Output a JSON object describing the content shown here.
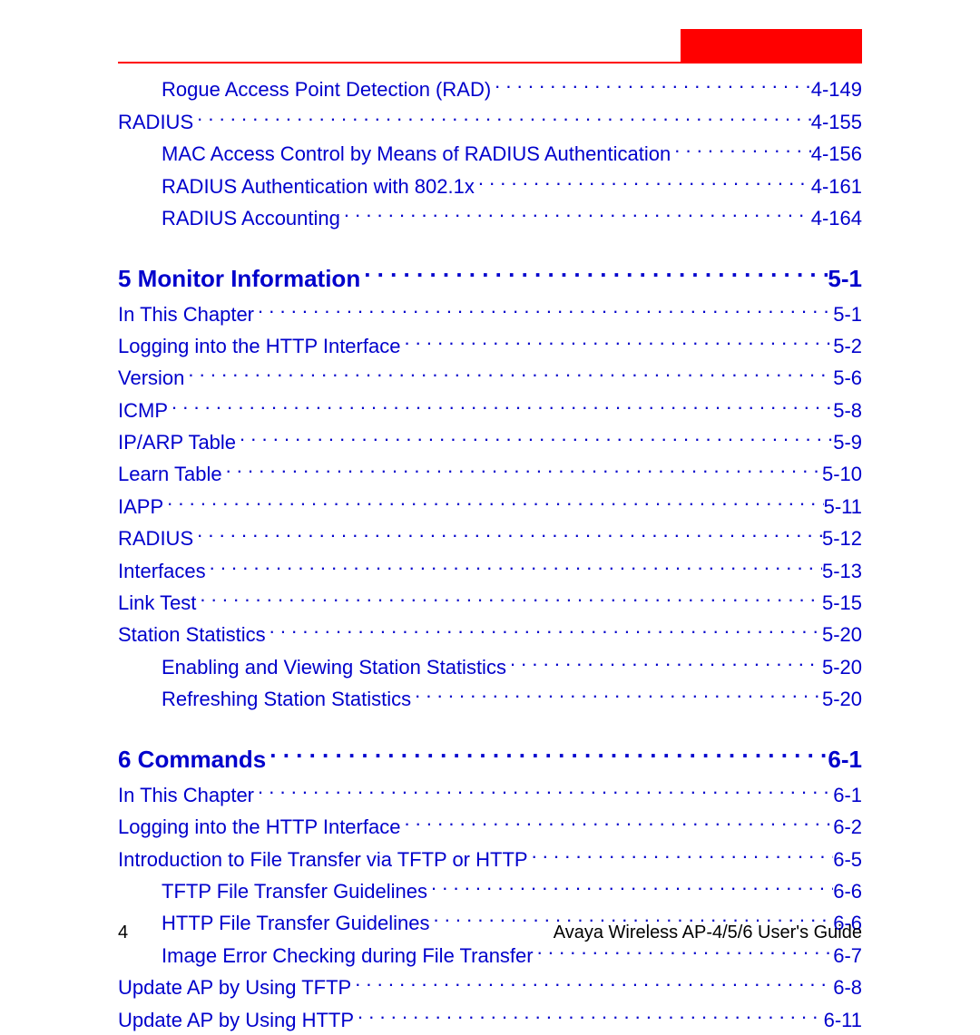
{
  "colors": {
    "link": "#0000cc",
    "accent": "#ff0000",
    "text": "#000000",
    "background": "#ffffff"
  },
  "typography": {
    "body_fontsize_pt": 16,
    "heading_fontsize_pt": 19,
    "font_family": "Arial"
  },
  "entries": [
    {
      "indent": 2,
      "title": "Rogue Access Point Detection (RAD)",
      "page": "4-149",
      "heading": false
    },
    {
      "indent": 1,
      "title": "RADIUS",
      "page": "4-155",
      "heading": false
    },
    {
      "indent": 2,
      "title": "MAC Access Control by Means of RADIUS Authentication",
      "page": "4-156",
      "heading": false
    },
    {
      "indent": 2,
      "title": "RADIUS Authentication with 802.1x",
      "page": "4-161",
      "heading": false
    },
    {
      "indent": 2,
      "title": "RADIUS Accounting",
      "page": "4-164",
      "heading": false
    },
    {
      "indent": 1,
      "title": "5 Monitor Information",
      "page": "5-1",
      "heading": true
    },
    {
      "indent": 1,
      "title": "In This Chapter",
      "page": "5-1",
      "heading": false
    },
    {
      "indent": 1,
      "title": "Logging into the HTTP Interface",
      "page": "5-2",
      "heading": false
    },
    {
      "indent": 1,
      "title": "Version",
      "page": "5-6",
      "heading": false
    },
    {
      "indent": 1,
      "title": "ICMP",
      "page": "5-8",
      "heading": false
    },
    {
      "indent": 1,
      "title": "IP/ARP Table",
      "page": "5-9",
      "heading": false
    },
    {
      "indent": 1,
      "title": "Learn Table",
      "page": "5-10",
      "heading": false
    },
    {
      "indent": 1,
      "title": "IAPP",
      "page": "5-11",
      "heading": false
    },
    {
      "indent": 1,
      "title": "RADIUS",
      "page": "5-12",
      "heading": false
    },
    {
      "indent": 1,
      "title": "Interfaces",
      "page": "5-13",
      "heading": false
    },
    {
      "indent": 1,
      "title": "Link Test",
      "page": "5-15",
      "heading": false
    },
    {
      "indent": 1,
      "title": "Station Statistics",
      "page": "5-20",
      "heading": false
    },
    {
      "indent": 2,
      "title": "Enabling and Viewing Station Statistics",
      "page": "5-20",
      "heading": false
    },
    {
      "indent": 2,
      "title": "Refreshing Station Statistics",
      "page": "5-20",
      "heading": false
    },
    {
      "indent": 1,
      "title": "6 Commands",
      "page": "6-1",
      "heading": true
    },
    {
      "indent": 1,
      "title": "In This Chapter",
      "page": "6-1",
      "heading": false
    },
    {
      "indent": 1,
      "title": "Logging into the HTTP Interface",
      "page": "6-2",
      "heading": false
    },
    {
      "indent": 1,
      "title": "Introduction to File Transfer via TFTP or HTTP",
      "page": "6-5",
      "heading": false
    },
    {
      "indent": 2,
      "title": "TFTP File Transfer Guidelines",
      "page": "6-6",
      "heading": false
    },
    {
      "indent": 2,
      "title": "HTTP File Transfer Guidelines",
      "page": "6-6",
      "heading": false
    },
    {
      "indent": 2,
      "title": "Image Error Checking during File Transfer",
      "page": "6-7",
      "heading": false
    },
    {
      "indent": 1,
      "title": "Update AP by Using TFTP",
      "page": "6-8",
      "heading": false
    },
    {
      "indent": 1,
      "title": "Update AP by Using HTTP",
      "page": "6-11",
      "heading": false
    }
  ],
  "footer": {
    "page_number": "4",
    "doc_title": "Avaya Wireless AP-4/5/6 User's Guide"
  }
}
